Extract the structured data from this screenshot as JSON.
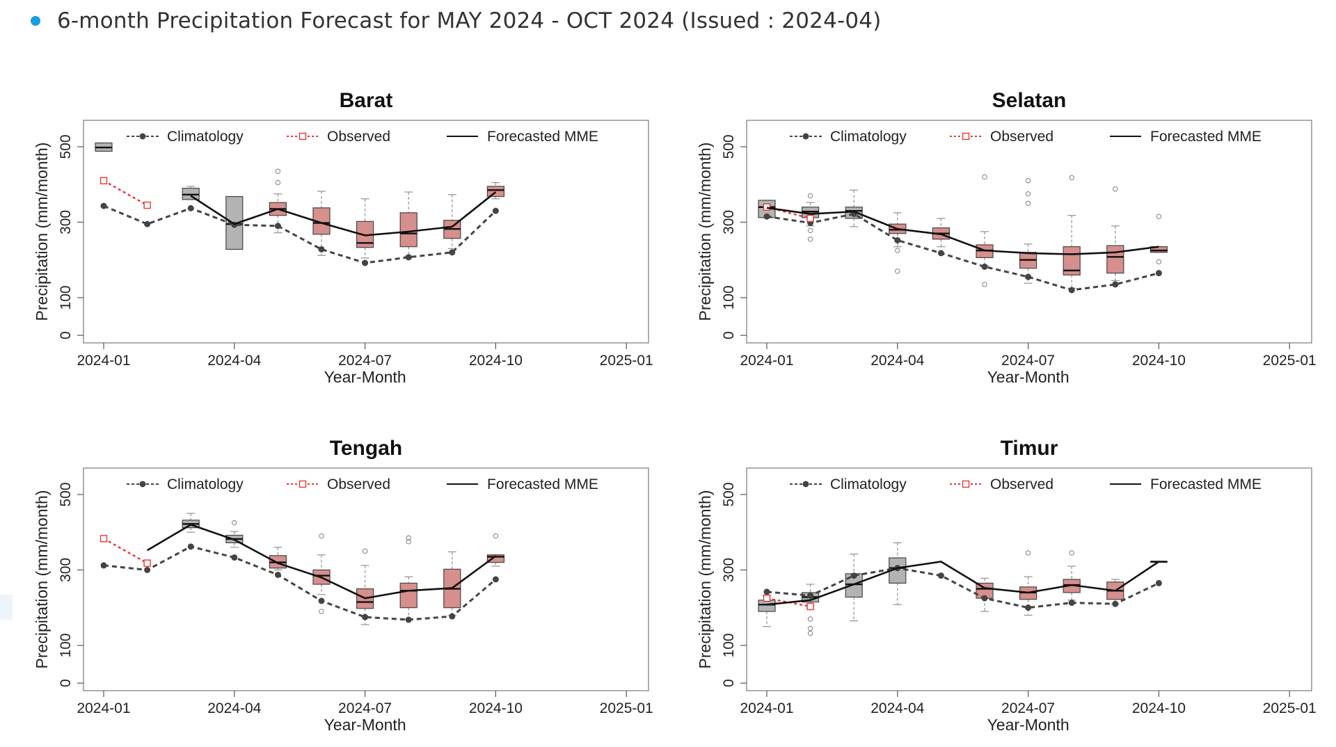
{
  "header": {
    "title": "6-month Precipitation Forecast for MAY 2024 - OCT 2024 (Issued : 2024-04)",
    "bullet_color": "#1a9de0"
  },
  "colors": {
    "climatology": "#444444",
    "observed": "#ee3333",
    "forecast_line": "#111111",
    "box_past": "#b3b3b3",
    "box_forecast": "#d68f8c"
  },
  "chart_data": [
    {
      "type": "line",
      "title": "Barat",
      "xlabel": "Year-Month",
      "ylabel": "Precipitation (mm/month)",
      "x_ticks": [
        "2024-01",
        "2024-04",
        "2024-07",
        "2024-10",
        "2025-01"
      ],
      "y_ticks": [
        0,
        100,
        300,
        500
      ],
      "ylim": [
        -20,
        570
      ],
      "legend": [
        "Climatology",
        "Observed",
        "Forecasted MME"
      ],
      "legend_position": "top",
      "climatology": {
        "x": [
          "2024-01",
          "2024-02",
          "2024-03",
          "2024-04",
          "2024-05",
          "2024-06",
          "2024-07",
          "2024-08",
          "2024-09",
          "2024-10"
        ],
        "values": [
          343,
          295,
          337,
          293,
          290,
          228,
          192,
          207,
          220,
          330
        ]
      },
      "observed": {
        "x": [
          "2024-01",
          "2024-02"
        ],
        "values": [
          410,
          345
        ]
      },
      "forecast_mme": {
        "x": [
          "2024-03",
          "2024-04",
          "2024-05",
          "2024-06",
          "2024-07",
          "2024-08",
          "2024-09",
          "2024-10"
        ],
        "values": [
          370,
          295,
          335,
          298,
          265,
          275,
          288,
          380
        ]
      },
      "boxes": [
        {
          "x": "2024-01",
          "q1": 488,
          "median": 498,
          "q3": 510,
          "lo": 488,
          "hi": 510,
          "outliers": [],
          "kind": "past"
        },
        {
          "x": "2024-03",
          "q1": 360,
          "median": 373,
          "q3": 390,
          "lo": 360,
          "hi": 395,
          "outliers": [],
          "kind": "past"
        },
        {
          "x": "2024-04",
          "q1": 228,
          "median": 295,
          "q3": 368,
          "lo": 228,
          "hi": 368,
          "outliers": [],
          "kind": "past"
        },
        {
          "x": "2024-05",
          "q1": 318,
          "median": 335,
          "q3": 352,
          "lo": 272,
          "hi": 375,
          "outliers": [
            405,
            435
          ],
          "kind": "forecast"
        },
        {
          "x": "2024-06",
          "q1": 268,
          "median": 298,
          "q3": 338,
          "lo": 212,
          "hi": 382,
          "outliers": [],
          "kind": "forecast"
        },
        {
          "x": "2024-07",
          "q1": 233,
          "median": 245,
          "q3": 302,
          "lo": 205,
          "hi": 362,
          "outliers": [],
          "kind": "forecast"
        },
        {
          "x": "2024-08",
          "q1": 235,
          "median": 270,
          "q3": 325,
          "lo": 210,
          "hi": 380,
          "outliers": [],
          "kind": "forecast"
        },
        {
          "x": "2024-09",
          "q1": 257,
          "median": 282,
          "q3": 305,
          "lo": 230,
          "hi": 373,
          "outliers": [],
          "kind": "forecast"
        },
        {
          "x": "2024-10",
          "q1": 368,
          "median": 385,
          "q3": 395,
          "lo": 362,
          "hi": 405,
          "outliers": [],
          "kind": "forecast"
        }
      ]
    },
    {
      "type": "line",
      "title": "Selatan",
      "xlabel": "Year-Month",
      "ylabel": "Precipitation (mm/month)",
      "x_ticks": [
        "2024-01",
        "2024-04",
        "2024-07",
        "2024-10",
        "2025-01"
      ],
      "y_ticks": [
        0,
        100,
        300,
        500
      ],
      "ylim": [
        -20,
        570
      ],
      "legend": [
        "Climatology",
        "Observed",
        "Forecasted MME"
      ],
      "legend_position": "top",
      "climatology": {
        "x": [
          "2024-01",
          "2024-02",
          "2024-03",
          "2024-04",
          "2024-05",
          "2024-06",
          "2024-07",
          "2024-08",
          "2024-09",
          "2024-10"
        ],
        "values": [
          315,
          298,
          322,
          252,
          218,
          182,
          155,
          120,
          135,
          165
        ]
      },
      "observed": {
        "x": [
          "2024-01",
          "2024-02"
        ],
        "values": [
          340,
          310
        ]
      },
      "forecast_mme": {
        "x": [
          "2024-01",
          "2024-02",
          "2024-03",
          "2024-04",
          "2024-05",
          "2024-06",
          "2024-07",
          "2024-08",
          "2024-09",
          "2024-10"
        ],
        "values": [
          338,
          322,
          328,
          282,
          268,
          225,
          218,
          215,
          220,
          235
        ]
      },
      "boxes": [
        {
          "x": "2024-01",
          "q1": 312,
          "median": 340,
          "q3": 358,
          "lo": 312,
          "hi": 358,
          "outliers": [],
          "kind": "past"
        },
        {
          "x": "2024-02",
          "q1": 312,
          "median": 328,
          "q3": 340,
          "lo": 290,
          "hi": 352,
          "outliers": [
            278,
            255,
            370
          ],
          "kind": "past"
        },
        {
          "x": "2024-03",
          "q1": 310,
          "median": 330,
          "q3": 340,
          "lo": 288,
          "hi": 385,
          "outliers": [],
          "kind": "past"
        },
        {
          "x": "2024-04",
          "q1": 270,
          "median": 280,
          "q3": 295,
          "lo": 235,
          "hi": 325,
          "outliers": [
            225,
            170
          ],
          "kind": "forecast"
        },
        {
          "x": "2024-05",
          "q1": 255,
          "median": 270,
          "q3": 285,
          "lo": 235,
          "hi": 310,
          "outliers": [],
          "kind": "forecast"
        },
        {
          "x": "2024-06",
          "q1": 206,
          "median": 225,
          "q3": 240,
          "lo": 185,
          "hi": 275,
          "outliers": [
            135,
            420
          ],
          "kind": "forecast"
        },
        {
          "x": "2024-07",
          "q1": 178,
          "median": 200,
          "q3": 220,
          "lo": 138,
          "hi": 242,
          "outliers": [
            350,
            375,
            410
          ],
          "kind": "forecast"
        },
        {
          "x": "2024-08",
          "q1": 160,
          "median": 172,
          "q3": 235,
          "lo": 125,
          "hi": 318,
          "outliers": [
            418
          ],
          "kind": "forecast"
        },
        {
          "x": "2024-09",
          "q1": 165,
          "median": 208,
          "q3": 238,
          "lo": 145,
          "hi": 290,
          "outliers": [
            388
          ],
          "kind": "forecast"
        },
        {
          "x": "2024-10",
          "q1": 220,
          "median": 225,
          "q3": 235,
          "lo": 220,
          "hi": 235,
          "outliers": [
            195,
            315
          ],
          "kind": "forecast"
        }
      ]
    },
    {
      "type": "line",
      "title": "Tengah",
      "xlabel": "Year-Month",
      "ylabel": "Precipitation (mm/month)",
      "x_ticks": [
        "2024-01",
        "2024-04",
        "2024-07",
        "2024-10",
        "2025-01"
      ],
      "y_ticks": [
        0,
        100,
        300,
        500
      ],
      "ylim": [
        -20,
        570
      ],
      "legend": [
        "Climatology",
        "Observed",
        "Forecasted MME"
      ],
      "legend_position": "top",
      "climatology": {
        "x": [
          "2024-01",
          "2024-02",
          "2024-03",
          "2024-04",
          "2024-05",
          "2024-06",
          "2024-07",
          "2024-08",
          "2024-09",
          "2024-10"
        ],
        "values": [
          312,
          300,
          362,
          333,
          287,
          218,
          175,
          168,
          177,
          275
        ]
      },
      "observed": {
        "x": [
          "2024-01",
          "2024-02"
        ],
        "values": [
          383,
          318
        ]
      },
      "forecast_mme": {
        "x": [
          "2024-02",
          "2024-03",
          "2024-04",
          "2024-05",
          "2024-06",
          "2024-07",
          "2024-08",
          "2024-09",
          "2024-10"
        ],
        "values": [
          352,
          420,
          380,
          318,
          280,
          225,
          245,
          252,
          337
        ]
      },
      "boxes": [
        {
          "x": "2024-03",
          "q1": 412,
          "median": 422,
          "q3": 432,
          "lo": 400,
          "hi": 450,
          "outliers": [],
          "kind": "past"
        },
        {
          "x": "2024-04",
          "q1": 372,
          "median": 382,
          "q3": 392,
          "lo": 360,
          "hi": 402,
          "outliers": [
            425
          ],
          "kind": "past"
        },
        {
          "x": "2024-05",
          "q1": 305,
          "median": 320,
          "q3": 338,
          "lo": 300,
          "hi": 360,
          "outliers": [],
          "kind": "forecast"
        },
        {
          "x": "2024-06",
          "q1": 262,
          "median": 285,
          "q3": 300,
          "lo": 235,
          "hi": 340,
          "outliers": [
            190,
            390
          ],
          "kind": "forecast"
        },
        {
          "x": "2024-07",
          "q1": 198,
          "median": 215,
          "q3": 250,
          "lo": 155,
          "hi": 312,
          "outliers": [
            350
          ],
          "kind": "forecast"
        },
        {
          "x": "2024-08",
          "q1": 200,
          "median": 245,
          "q3": 265,
          "lo": 170,
          "hi": 282,
          "outliers": [
            375,
            385
          ],
          "kind": "forecast"
        },
        {
          "x": "2024-09",
          "q1": 200,
          "median": 250,
          "q3": 302,
          "lo": 180,
          "hi": 348,
          "outliers": [],
          "kind": "forecast"
        },
        {
          "x": "2024-10",
          "q1": 320,
          "median": 335,
          "q3": 340,
          "lo": 310,
          "hi": 340,
          "outliers": [
            390
          ],
          "kind": "forecast"
        }
      ]
    },
    {
      "type": "line",
      "title": "Timur",
      "xlabel": "Year-Month",
      "ylabel": "Precipitation (mm/month)",
      "x_ticks": [
        "2024-01",
        "2024-04",
        "2024-07",
        "2024-10",
        "2025-01"
      ],
      "y_ticks": [
        0,
        100,
        300,
        500
      ],
      "ylim": [
        -20,
        570
      ],
      "legend": [
        "Climatology",
        "Observed",
        "Forecasted MME"
      ],
      "legend_position": "top",
      "climatology": {
        "x": [
          "2024-01",
          "2024-02",
          "2024-03",
          "2024-04",
          "2024-05",
          "2024-06",
          "2024-07",
          "2024-08",
          "2024-09",
          "2024-10"
        ],
        "values": [
          242,
          232,
          285,
          305,
          285,
          225,
          200,
          213,
          210,
          265
        ]
      },
      "observed": {
        "x": [
          "2024-01",
          "2024-02"
        ],
        "values": [
          225,
          203
        ]
      },
      "forecast_mme": {
        "x": [
          "2024-01",
          "2024-02",
          "2024-03",
          "2024-04",
          "2024-05",
          "2024-06",
          "2024-07",
          "2024-08",
          "2024-09",
          "2024-10"
        ],
        "values": [
          208,
          220,
          262,
          305,
          322,
          252,
          240,
          260,
          245,
          322
        ]
      },
      "boxes": [
        {
          "x": "2024-01",
          "q1": 190,
          "median": 208,
          "q3": 220,
          "lo": 150,
          "hi": 232,
          "outliers": [],
          "kind": "past"
        },
        {
          "x": "2024-02",
          "q1": 215,
          "median": 228,
          "q3": 240,
          "lo": 205,
          "hi": 262,
          "outliers": [
            170,
            145,
            132
          ],
          "kind": "past"
        },
        {
          "x": "2024-03",
          "q1": 228,
          "median": 262,
          "q3": 290,
          "lo": 165,
          "hi": 342,
          "outliers": [],
          "kind": "past"
        },
        {
          "x": "2024-04",
          "q1": 265,
          "median": 305,
          "q3": 332,
          "lo": 208,
          "hi": 372,
          "outliers": [],
          "kind": "past"
        },
        {
          "x": "2024-06",
          "q1": 225,
          "median": 250,
          "q3": 265,
          "lo": 190,
          "hi": 278,
          "outliers": [],
          "kind": "forecast"
        },
        {
          "x": "2024-07",
          "q1": 222,
          "median": 240,
          "q3": 255,
          "lo": 180,
          "hi": 282,
          "outliers": [
            345
          ],
          "kind": "forecast"
        },
        {
          "x": "2024-08",
          "q1": 240,
          "median": 260,
          "q3": 275,
          "lo": 220,
          "hi": 310,
          "outliers": [
            345
          ],
          "kind": "forecast"
        },
        {
          "x": "2024-09",
          "q1": 222,
          "median": 245,
          "q3": 268,
          "lo": 210,
          "hi": 275,
          "outliers": [],
          "kind": "forecast"
        },
        {
          "x": "2024-10",
          "q1": 322,
          "median": 322,
          "q3": 322,
          "lo": 322,
          "hi": 322,
          "outliers": [],
          "kind": "forecast"
        }
      ]
    }
  ]
}
